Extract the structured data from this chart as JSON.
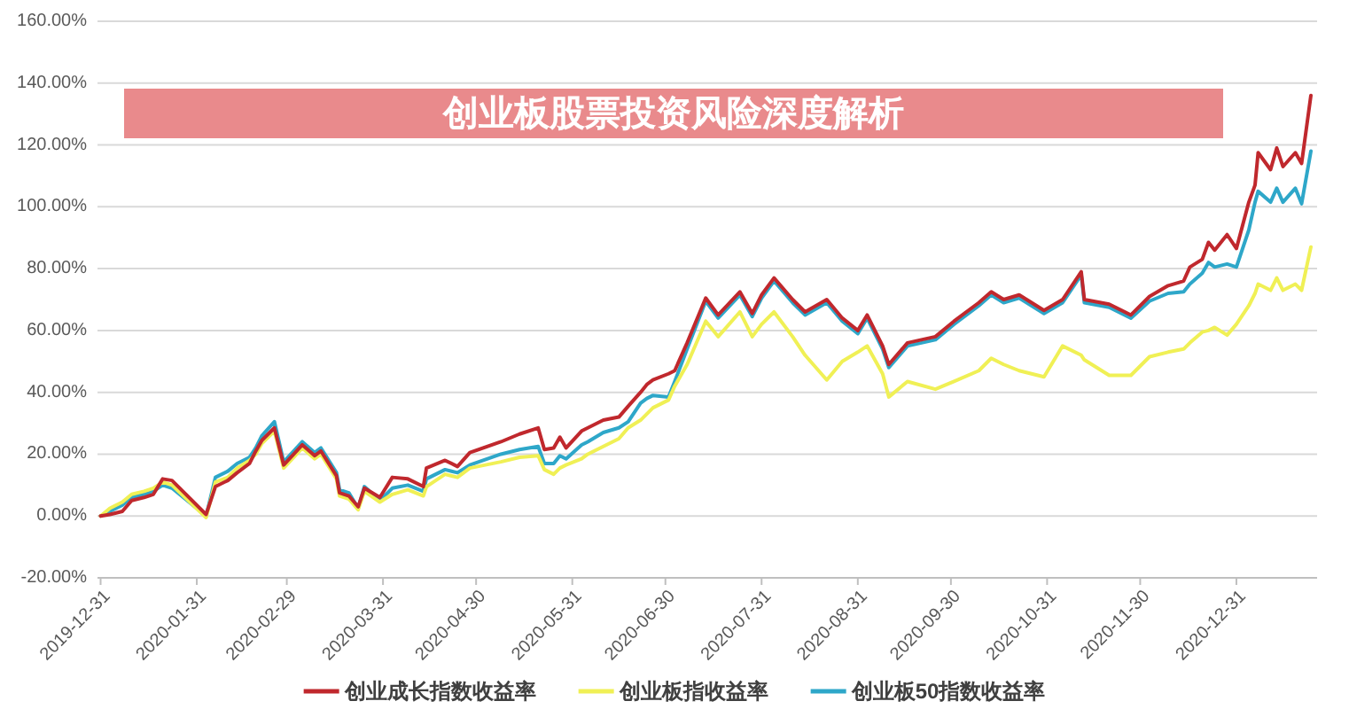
{
  "chart_data": {
    "type": "line",
    "title": "创业板股票投资风险深度解析",
    "x": [
      "2019-12-31",
      "2020-01-03",
      "2020-01-07",
      "2020-01-10",
      "2020-01-14",
      "2020-01-17",
      "2020-01-20",
      "2020-01-23",
      "2020-02-03",
      "2020-02-06",
      "2020-02-10",
      "2020-02-13",
      "2020-02-17",
      "2020-02-19",
      "2020-02-21",
      "2020-02-25",
      "2020-02-28",
      "2020-03-05",
      "2020-03-09",
      "2020-03-11",
      "2020-03-16",
      "2020-03-17",
      "2020-03-20",
      "2020-03-23",
      "2020-03-25",
      "2020-03-30",
      "2020-04-03",
      "2020-04-08",
      "2020-04-13",
      "2020-04-14",
      "2020-04-20",
      "2020-04-24",
      "2020-04-28",
      "2020-05-08",
      "2020-05-14",
      "2020-05-20",
      "2020-05-22",
      "2020-05-25",
      "2020-05-27",
      "2020-05-29",
      "2020-06-03",
      "2020-06-05",
      "2020-06-10",
      "2020-06-15",
      "2020-06-18",
      "2020-06-22",
      "2020-06-24",
      "2020-06-26",
      "2020-07-01",
      "2020-07-03",
      "2020-07-07",
      "2020-07-13",
      "2020-07-17",
      "2020-07-24",
      "2020-07-28",
      "2020-07-31",
      "2020-08-04",
      "2020-08-10",
      "2020-08-14",
      "2020-08-21",
      "2020-08-26",
      "2020-08-31",
      "2020-09-03",
      "2020-09-08",
      "2020-09-10",
      "2020-09-16",
      "2020-09-25",
      "2020-10-01",
      "2020-10-09",
      "2020-10-13",
      "2020-10-17",
      "2020-10-22",
      "2020-10-30",
      "2020-11-05",
      "2020-11-11",
      "2020-11-12",
      "2020-11-20",
      "2020-11-27",
      "2020-12-03",
      "2020-12-09",
      "2020-12-14",
      "2020-12-16",
      "2020-12-20",
      "2020-12-22",
      "2020-12-24",
      "2020-12-28",
      "2020-12-31",
      "2021-01-04",
      "2021-01-06",
      "2021-01-07",
      "2021-01-11",
      "2021-01-13",
      "2021-01-15",
      "2021-01-19",
      "2021-01-21",
      "2021-01-24"
    ],
    "series": [
      {
        "name": "创业成长指数收益率",
        "color": "#c0282d",
        "values": [
          0,
          0.5,
          1.5,
          5,
          6,
          7,
          12,
          11.5,
          0.5,
          9.5,
          11.5,
          14,
          17,
          21,
          24.5,
          28.5,
          16.5,
          23,
          19.5,
          21,
          13,
          7.5,
          6.5,
          3,
          9,
          6,
          12.5,
          12,
          9.5,
          15.5,
          18,
          16,
          20.5,
          24,
          26.5,
          28.5,
          21.5,
          22,
          25.5,
          22,
          27.5,
          28.5,
          31,
          32,
          35.5,
          40,
          42.5,
          44,
          46,
          47,
          56,
          70.5,
          65,
          72.5,
          65.5,
          71.5,
          77,
          70,
          66,
          70,
          64,
          60,
          65,
          55,
          49,
          56,
          58,
          63,
          69,
          72.5,
          70,
          71.5,
          66.5,
          70,
          79,
          70,
          68.5,
          65,
          71,
          74.5,
          76,
          80.5,
          83,
          88.5,
          86,
          91,
          86.5,
          101.5,
          107,
          117.5,
          112,
          119,
          113,
          117.5,
          114,
          136
        ]
      },
      {
        "name": "创业板指收益率",
        "color": "#f0f055",
        "values": [
          0,
          2.5,
          4.5,
          7,
          8,
          9,
          11,
          10,
          -0.5,
          11,
          12.5,
          15.5,
          18,
          20,
          23.5,
          27.5,
          15.5,
          22,
          18.5,
          20,
          12,
          6.5,
          5.5,
          2,
          8,
          4.5,
          7,
          8.5,
          6.5,
          9.5,
          13.5,
          12.5,
          15.5,
          17.5,
          19,
          19.5,
          15,
          13.5,
          15.5,
          16.5,
          18.5,
          20,
          22.5,
          25,
          28.5,
          31,
          33,
          35,
          37.5,
          42,
          49,
          63,
          58,
          66,
          58,
          62,
          66,
          58,
          52,
          44,
          50,
          53,
          55,
          46,
          38.5,
          43.5,
          41,
          43.5,
          47,
          51,
          49,
          47,
          45,
          55,
          52,
          50.5,
          45.5,
          45.5,
          51.5,
          53,
          54,
          56,
          59.5,
          60,
          61,
          58.5,
          62,
          68,
          72,
          75,
          73,
          77,
          73,
          75,
          73,
          87
        ]
      },
      {
        "name": "创业板50指数收益率",
        "color": "#2ea7c9",
        "values": [
          0,
          1.5,
          3.5,
          6,
          7,
          8,
          10,
          9,
          0,
          12.5,
          14.5,
          17,
          19,
          22,
          26,
          30.5,
          17.5,
          24,
          20.5,
          22,
          14,
          8.5,
          7.5,
          2.5,
          9.5,
          5,
          9,
          10,
          8,
          12,
          15,
          14,
          16.5,
          20,
          21.5,
          22.5,
          17,
          17,
          19.5,
          18.5,
          23,
          24,
          27,
          28.5,
          30.5,
          36.5,
          38,
          39,
          38.5,
          43.5,
          54,
          69.5,
          64,
          71.5,
          64.5,
          70.5,
          76,
          69,
          65,
          69,
          63,
          59,
          64,
          54,
          48,
          55,
          57,
          62,
          68,
          71.5,
          69,
          70.5,
          65.5,
          69,
          78,
          69,
          67.5,
          64,
          69.5,
          72,
          72.5,
          75,
          78.5,
          82,
          80.5,
          81.5,
          80.5,
          92.5,
          101.5,
          105,
          101.5,
          106,
          101.5,
          106,
          101,
          118
        ]
      }
    ],
    "xlim": [
      "2019-12-30",
      "2021-01-26"
    ],
    "xticks": [
      "2019-12-31",
      "2020-01-31",
      "2020-02-29",
      "2020-03-31",
      "2020-04-30",
      "2020-05-31",
      "2020-06-30",
      "2020-07-31",
      "2020-08-31",
      "2020-09-30",
      "2020-10-31",
      "2020-11-30",
      "2020-12-31"
    ],
    "ylim": [
      -20,
      160
    ],
    "yticks": [
      {
        "value": -20,
        "label": "-20.00%"
      },
      {
        "value": 0,
        "label": "0.00%"
      },
      {
        "value": 20,
        "label": "20.00%"
      },
      {
        "value": 40,
        "label": "40.00%"
      },
      {
        "value": 60,
        "label": "60.00%"
      },
      {
        "value": 80,
        "label": "80.00%"
      },
      {
        "value": 100,
        "label": "100.00%"
      },
      {
        "value": 120,
        "label": "120.00%"
      },
      {
        "value": 140,
        "label": "140.00%"
      },
      {
        "value": 160,
        "label": "160.00%"
      }
    ],
    "grid": "y",
    "legend": "bottom"
  }
}
